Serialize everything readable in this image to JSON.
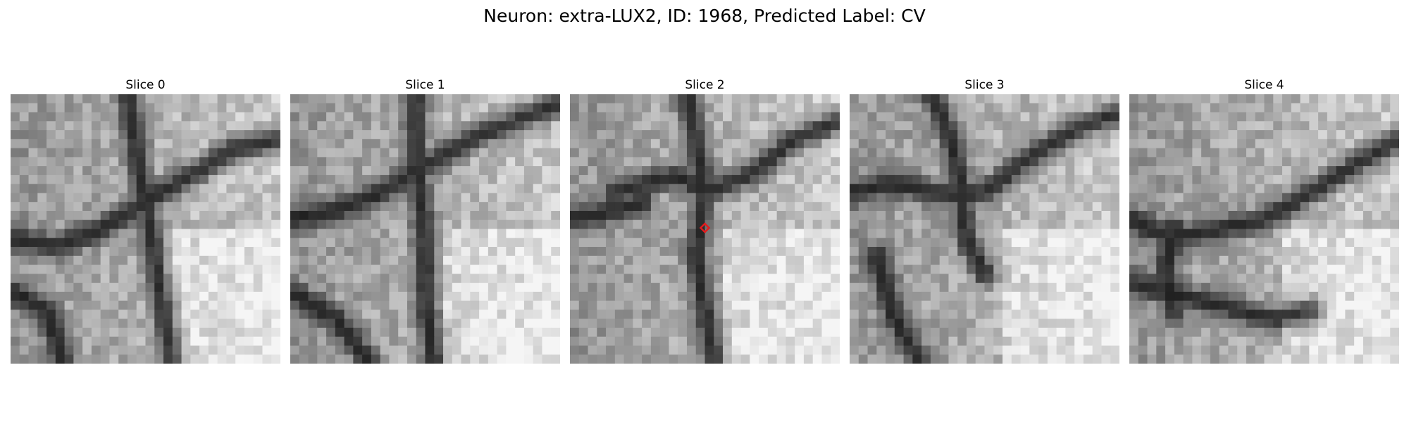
{
  "figure": {
    "title": "Neuron: extra-LUX2, ID: 1968, Predicted Label: CV"
  },
  "panels": [
    {
      "title": "Slice 0",
      "seed": 11,
      "marker": false
    },
    {
      "title": "Slice 1",
      "seed": 23,
      "marker": false
    },
    {
      "title": "Slice 2",
      "seed": 37,
      "marker": true
    },
    {
      "title": "Slice 3",
      "seed": 41,
      "marker": false
    },
    {
      "title": "Slice 4",
      "seed": 59,
      "marker": false
    }
  ],
  "colors": {
    "marker": "#e31a1c",
    "image_colormap": "grayscale"
  }
}
